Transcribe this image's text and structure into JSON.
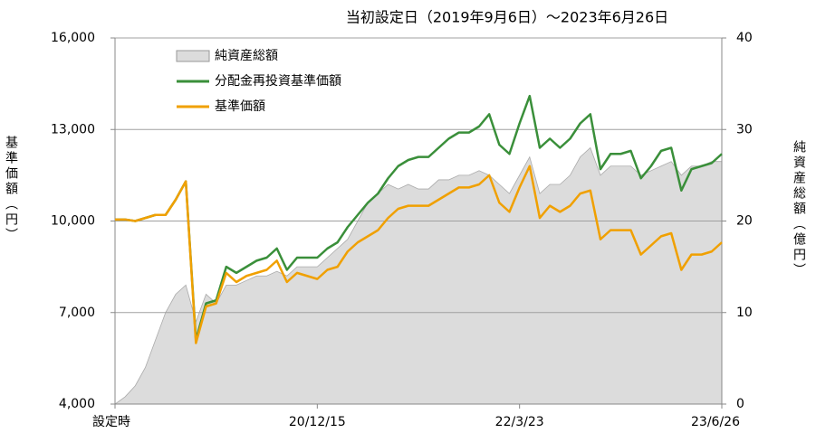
{
  "chart_data": {
    "type": "line",
    "title": "当初設定日（2019年9月6日）～2023年6月26日",
    "y_label": "基準価額（円）",
    "y2_label": "純資産総額（億円）",
    "categories": [
      "設定時",
      null,
      null,
      null,
      null,
      null,
      null,
      null,
      null,
      null,
      null,
      null,
      null,
      null,
      null,
      null,
      null,
      null,
      null,
      null,
      "20/12/15",
      null,
      null,
      null,
      null,
      null,
      null,
      null,
      null,
      null,
      null,
      null,
      null,
      null,
      null,
      null,
      null,
      null,
      null,
      null,
      "22/3/23",
      null,
      null,
      null,
      null,
      null,
      null,
      null,
      null,
      null,
      null,
      null,
      null,
      null,
      null,
      null,
      null,
      null,
      null,
      null,
      "23/6/26"
    ],
    "ylim": [
      4000,
      16000
    ],
    "yticks": [
      {
        "value": 4000,
        "label": "4,000"
      },
      {
        "value": 7000,
        "label": "7,000"
      },
      {
        "value": 10000,
        "label": "10,000"
      },
      {
        "value": 13000,
        "label": "13,000"
      },
      {
        "value": 16000,
        "label": "16,000"
      }
    ],
    "y2lim": [
      0,
      40
    ],
    "y2ticks": [
      0,
      10,
      20,
      30,
      40
    ],
    "grid": true,
    "legend": "upper left",
    "series": [
      {
        "name": "純資産総額",
        "type": "area",
        "axis": "y2",
        "color": "#dcdcdc",
        "values": [
          0,
          0.8,
          2,
          4,
          7,
          10,
          12,
          13,
          9,
          12,
          11,
          13,
          13,
          13.5,
          14,
          14,
          14.5,
          14,
          15,
          15,
          15,
          16,
          17,
          18,
          20,
          22,
          23,
          24,
          23.5,
          24,
          23.5,
          23.5,
          24.5,
          24.5,
          25,
          25,
          25.5,
          25,
          24,
          23,
          25,
          27,
          23,
          24,
          24,
          25,
          27,
          28,
          25,
          26,
          26,
          26,
          25,
          25.5,
          26,
          26.5,
          25,
          26,
          26,
          26.5,
          26.5
        ]
      },
      {
        "name": "分配金再投資基準価額",
        "type": "line",
        "color": "#3a8f3a",
        "values": [
          10050,
          10050,
          10000,
          10100,
          10200,
          10200,
          10700,
          11300,
          6100,
          7300,
          7400,
          8500,
          8300,
          8500,
          8700,
          8800,
          9100,
          8400,
          8800,
          8800,
          8800,
          9100,
          9300,
          9800,
          10200,
          10600,
          10900,
          11400,
          11800,
          12000,
          12100,
          12100,
          12400,
          12700,
          12900,
          12900,
          13100,
          13500,
          12500,
          12200,
          13200,
          14100,
          12400,
          12700,
          12400,
          12700,
          13200,
          13500,
          11700,
          12200,
          12200,
          12300,
          11400,
          11800,
          12300,
          12400,
          11000,
          11700,
          11800,
          11900,
          12200
        ]
      },
      {
        "name": "基準価額",
        "type": "line",
        "color": "#f0a000",
        "values": [
          10050,
          10050,
          10000,
          10100,
          10200,
          10200,
          10700,
          11300,
          6000,
          7200,
          7300,
          8300,
          8000,
          8200,
          8300,
          8400,
          8700,
          8000,
          8300,
          8200,
          8100,
          8400,
          8500,
          9000,
          9300,
          9500,
          9700,
          10100,
          10400,
          10500,
          10500,
          10500,
          10700,
          10900,
          11100,
          11100,
          11200,
          11500,
          10600,
          10300,
          11100,
          11800,
          10100,
          10500,
          10300,
          10500,
          10900,
          11000,
          9400,
          9700,
          9700,
          9700,
          8900,
          9200,
          9500,
          9600,
          8400,
          8900,
          8900,
          9000,
          9300
        ]
      }
    ]
  }
}
